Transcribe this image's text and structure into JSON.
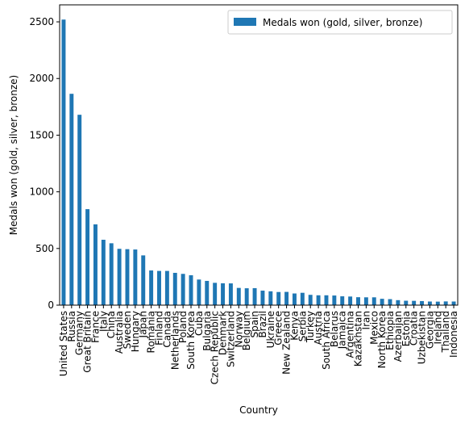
{
  "colors": {
    "bar": "#1f77b4",
    "axis": "#000000",
    "legend_border": "#cccccc"
  },
  "chart_data": {
    "type": "bar",
    "xlabel": "Country",
    "ylabel": "Medals won (gold, silver, bronze)",
    "ylim": [
      0,
      2650
    ],
    "yticks": [
      0,
      500,
      1000,
      1500,
      2000,
      2500
    ],
    "grid": false,
    "legend": {
      "position": "top-right"
    },
    "categories": [
      "United States",
      "Russia",
      "Germany",
      "Great Britain",
      "France",
      "Italy",
      "China",
      "Australia",
      "Sweden",
      "Hungary",
      "Japan",
      "Romania",
      "Finland",
      "Canada",
      "Netherlands",
      "Poland",
      "South Korea",
      "Cuba",
      "Bulgaria",
      "Czech Republic",
      "Denmark",
      "Switzerland",
      "Norway",
      "Belgium",
      "Spain",
      "Brazil",
      "Ukraine",
      "Greece",
      "New Zealand",
      "Kenya",
      "Serbia",
      "Turkey",
      "Austria",
      "South Africa",
      "Belarus",
      "Jamaica",
      "Argentina",
      "Kazakhstan",
      "Iran",
      "Mexico",
      "North Korea",
      "Ethiopia",
      "Azerbaijan",
      "Estonia",
      "Croatia",
      "Uzbekistan",
      "Georgia",
      "Ireland",
      "Thailand",
      "Indonesia"
    ],
    "series": [
      {
        "name": "Medals won (gold, silver, bronze)",
        "values": [
          2520,
          1865,
          1680,
          847,
          713,
          577,
          546,
          497,
          494,
          491,
          439,
          306,
          302,
          302,
          285,
          276,
          264,
          226,
          214,
          197,
          193,
          192,
          152,
          149,
          150,
          128,
          122,
          116,
          117,
          103,
          109,
          91,
          87,
          87,
          85,
          78,
          76,
          70,
          69,
          69,
          56,
          53,
          44,
          39,
          38,
          36,
          32,
          31,
          33,
          32
        ]
      }
    ]
  }
}
